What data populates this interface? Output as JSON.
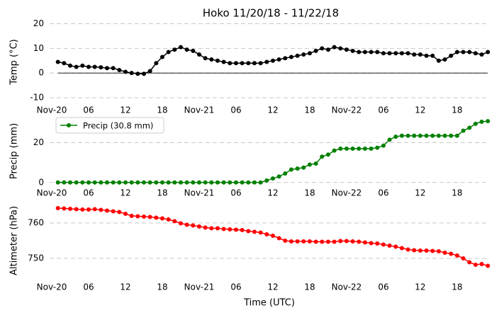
{
  "chart_data": [
    {
      "type": "line",
      "title": "Hoko 11/20/18 - 11/22/18",
      "ylabel": "Temp (°C)",
      "x": [
        1,
        2,
        3,
        4,
        5,
        6,
        7,
        8,
        9,
        10,
        11,
        12,
        13,
        14,
        15,
        16,
        17,
        18,
        19,
        20,
        21,
        22,
        23,
        24,
        25,
        26,
        27,
        28,
        29,
        30,
        31,
        32,
        33,
        34,
        35,
        36,
        37,
        38,
        39,
        40,
        41,
        42,
        43,
        44,
        45,
        46,
        47,
        48,
        49,
        50,
        51,
        52,
        53,
        54,
        55,
        56,
        57,
        58,
        59,
        60,
        61,
        62,
        63,
        64,
        65,
        66,
        67,
        68,
        69,
        70,
        71
      ],
      "series": [
        {
          "name": "Temp",
          "color": "#000000",
          "values": [
            4.5,
            4,
            3,
            2.5,
            3,
            2.5,
            2.5,
            2.3,
            2,
            2,
            1.2,
            0.5,
            0,
            -0.3,
            -0.3,
            0.8,
            4,
            6.5,
            8.5,
            9.5,
            10.5,
            9.5,
            9,
            7.5,
            6,
            5.5,
            5,
            4.5,
            4,
            4,
            4,
            4,
            4,
            4,
            4.5,
            5,
            5.5,
            6,
            6.5,
            7,
            7.5,
            8,
            9,
            10,
            9.5,
            10.5,
            10,
            9.5,
            9,
            8.5,
            8.5,
            8.5,
            8.5,
            8,
            8,
            8,
            8,
            8,
            7.5,
            7.5,
            7,
            7,
            5,
            5.5,
            7,
            8.5,
            8.5,
            8.5,
            8,
            7.5,
            8.5
          ]
        }
      ],
      "hline": 0,
      "xlim": [
        -0.35,
        71.2
      ],
      "xticks": [
        {
          "value": 0,
          "label": "Nov-20"
        },
        {
          "value": 6,
          "label": "06"
        },
        12,
        18,
        {
          "value": 24,
          "label": "Nov-21"
        },
        {
          "value": 30,
          "label": "06"
        },
        {
          "value": 36,
          "label": "12"
        },
        {
          "value": 42,
          "label": "18"
        },
        {
          "value": 48,
          "label": "Nov-22"
        },
        {
          "value": 54,
          "label": "06"
        },
        {
          "value": 60,
          "label": "12"
        },
        {
          "value": 66,
          "label": "18"
        }
      ],
      "ylim": [
        -12,
        21
      ],
      "yticks": [
        -10,
        0,
        10,
        20
      ],
      "grid": true
    },
    {
      "type": "line",
      "ylabel": "Precip (mm)",
      "x": [
        1,
        2,
        3,
        4,
        5,
        6,
        7,
        8,
        9,
        10,
        11,
        12,
        13,
        14,
        15,
        16,
        17,
        18,
        19,
        20,
        21,
        22,
        23,
        24,
        25,
        26,
        27,
        28,
        29,
        30,
        31,
        32,
        33,
        34,
        35,
        36,
        37,
        38,
        39,
        40,
        41,
        42,
        43,
        44,
        45,
        46,
        47,
        48,
        49,
        50,
        51,
        52,
        53,
        54,
        55,
        56,
        57,
        58,
        59,
        60,
        61,
        62,
        63,
        64,
        65,
        66,
        67,
        68,
        69,
        70,
        71
      ],
      "series": [
        {
          "name": "Precip (30.8 mm)",
          "color": "#008000",
          "values": [
            0,
            0,
            0,
            0,
            0,
            0,
            0,
            0,
            0,
            0,
            0,
            0,
            0,
            0,
            0,
            0,
            0,
            0,
            0,
            0,
            0,
            0,
            0,
            0,
            0,
            0,
            0,
            0,
            0,
            0,
            0,
            0,
            0,
            0,
            1,
            2,
            3,
            4.5,
            6.5,
            7,
            7.5,
            9,
            9.5,
            13,
            14,
            16,
            17,
            17,
            17,
            17,
            17,
            17,
            17.5,
            18.5,
            21.5,
            23,
            23.5,
            23.5,
            23.5,
            23.5,
            23.5,
            23.5,
            23.5,
            23.5,
            23.5,
            23.5,
            26,
            27.5,
            29.5,
            30.5,
            30.8
          ]
        }
      ],
      "legend": "upper left",
      "xlim": [
        -0.35,
        71.2
      ],
      "xticks": [
        {
          "value": 0,
          "label": "Nov-20"
        },
        {
          "value": 6,
          "label": "06"
        },
        12,
        18,
        {
          "value": 24,
          "label": "Nov-21"
        },
        {
          "value": 30,
          "label": "06"
        },
        {
          "value": 36,
          "label": "12"
        },
        {
          "value": 42,
          "label": "18"
        },
        {
          "value": 48,
          "label": "Nov-22"
        },
        {
          "value": 54,
          "label": "06"
        },
        {
          "value": 60,
          "label": "12"
        },
        {
          "value": 66,
          "label": "18"
        }
      ],
      "ylim": [
        -1.5,
        33
      ],
      "yticks": [
        0,
        20
      ],
      "grid": true
    },
    {
      "type": "line",
      "ylabel": "Altimeter (hPa)",
      "xlabel": "Time (UTC)",
      "x": [
        1,
        2,
        3,
        4,
        5,
        6,
        7,
        8,
        9,
        10,
        11,
        12,
        13,
        14,
        15,
        16,
        17,
        18,
        19,
        20,
        21,
        22,
        23,
        24,
        25,
        26,
        27,
        28,
        29,
        30,
        31,
        32,
        33,
        34,
        35,
        36,
        37,
        38,
        39,
        40,
        41,
        42,
        43,
        44,
        45,
        46,
        47,
        48,
        49,
        50,
        51,
        52,
        53,
        54,
        55,
        56,
        57,
        58,
        59,
        60,
        61,
        62,
        63,
        64,
        65,
        66,
        67,
        68,
        69,
        70,
        71
      ],
      "series": [
        {
          "name": "Altimeter",
          "color": "#ff0000",
          "values": [
            764.2,
            764.1,
            764,
            763.9,
            763.8,
            763.8,
            763.9,
            763.7,
            763.5,
            763.3,
            763.1,
            762.6,
            762,
            761.9,
            761.8,
            761.7,
            761.5,
            761.3,
            761,
            760.5,
            759.9,
            759.5,
            759.3,
            759,
            758.7,
            758.5,
            758.5,
            758.3,
            758.2,
            758.1,
            758,
            757.7,
            757.5,
            757.3,
            756.8,
            756.4,
            755.7,
            755,
            754.8,
            754.8,
            754.8,
            754.8,
            754.7,
            754.7,
            754.7,
            754.7,
            754.9,
            754.9,
            754.8,
            754.7,
            754.5,
            754.3,
            754.2,
            753.9,
            753.6,
            753.3,
            752.9,
            752.5,
            752.3,
            752.2,
            752.2,
            752.1,
            752,
            751.6,
            751.3,
            750.8,
            750,
            748.9,
            748.2,
            748.4,
            747.9
          ]
        }
      ],
      "xlim": [
        -0.35,
        71.2
      ],
      "xticks": [
        {
          "value": 0,
          "label": "Nov-20"
        },
        {
          "value": 6,
          "label": "06"
        },
        12,
        18,
        {
          "value": 24,
          "label": "Nov-21"
        },
        {
          "value": 30,
          "label": "06"
        },
        {
          "value": 36,
          "label": "12"
        },
        {
          "value": 42,
          "label": "18"
        },
        {
          "value": 48,
          "label": "Nov-22"
        },
        {
          "value": 54,
          "label": "06"
        },
        {
          "value": 60,
          "label": "12"
        },
        {
          "value": 66,
          "label": "18"
        }
      ],
      "ylim": [
        744,
        766
      ],
      "yticks": [
        750,
        760
      ],
      "grid": true
    }
  ]
}
